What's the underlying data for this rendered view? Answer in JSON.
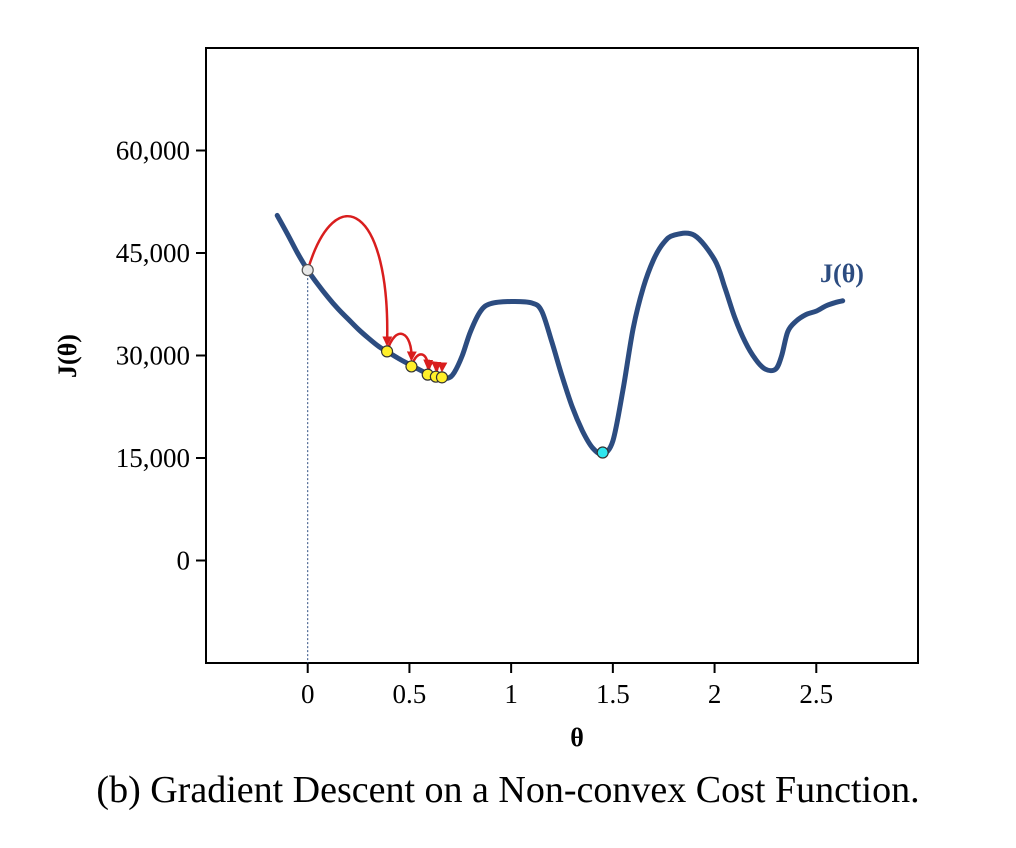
{
  "caption": "(b) Gradient Descent on a Non-convex Cost Function.",
  "colors": {
    "curve": "#2c4c80",
    "arrow": "#d91e1e",
    "start_point": "#e8e8e8",
    "step_point": "#ffef2a",
    "global_min_point": "#2ee6ee",
    "frame": "#000000"
  },
  "chart_data": {
    "type": "line",
    "title": "",
    "xlabel": "θ",
    "ylabel": "J(θ)",
    "xlim": [
      -0.5,
      3.0
    ],
    "ylim": [
      -15000,
      75000
    ],
    "x_ticks": [
      0,
      0.5,
      1,
      1.5,
      2,
      2.5
    ],
    "x_tick_labels": [
      "0",
      "0.5",
      "1",
      "1.5",
      "2",
      "2.5"
    ],
    "y_ticks": [
      0,
      15000,
      30000,
      45000,
      60000
    ],
    "y_tick_labels": [
      "0",
      "15,000",
      "30,000",
      "45,000",
      "60,000"
    ],
    "grid": false,
    "series": [
      {
        "name": "J(θ)",
        "x": [
          -0.15,
          -0.1,
          -0.05,
          0,
          0.05,
          0.1,
          0.15,
          0.2,
          0.25,
          0.3,
          0.35,
          0.4,
          0.45,
          0.5,
          0.55,
          0.6,
          0.65,
          0.69,
          0.72,
          0.76,
          0.8,
          0.85,
          0.9,
          1.0,
          1.1,
          1.15,
          1.2,
          1.25,
          1.3,
          1.35,
          1.4,
          1.45,
          1.5,
          1.55,
          1.6,
          1.65,
          1.7,
          1.75,
          1.8,
          1.9,
          2.0,
          2.05,
          2.1,
          2.15,
          2.2,
          2.25,
          2.3,
          2.33,
          2.36,
          2.4,
          2.45,
          2.5,
          2.55,
          2.6,
          2.63
        ],
        "y": [
          50500,
          47800,
          45000,
          42500,
          40400,
          38500,
          36800,
          35300,
          33800,
          32500,
          31300,
          30400,
          29500,
          28700,
          27900,
          27200,
          26800,
          26700,
          27500,
          30000,
          33500,
          36500,
          37600,
          37900,
          37700,
          36500,
          32000,
          27000,
          22500,
          19000,
          16500,
          15600,
          17500,
          25000,
          34000,
          40000,
          44000,
          46500,
          47600,
          47600,
          44000,
          40000,
          35500,
          32000,
          29500,
          28000,
          28000,
          30000,
          33500,
          35000,
          36000,
          36500,
          37300,
          37800,
          38000
        ]
      }
    ],
    "gradient_descent": {
      "start": {
        "x": 0.0,
        "y": 42500
      },
      "steps": [
        {
          "x": 0.39,
          "y": 30600
        },
        {
          "x": 0.51,
          "y": 28400
        },
        {
          "x": 0.59,
          "y": 27200
        },
        {
          "x": 0.63,
          "y": 26900
        },
        {
          "x": 0.66,
          "y": 26800
        }
      ]
    },
    "global_minimum": {
      "x": 1.45,
      "y": 15800
    }
  }
}
